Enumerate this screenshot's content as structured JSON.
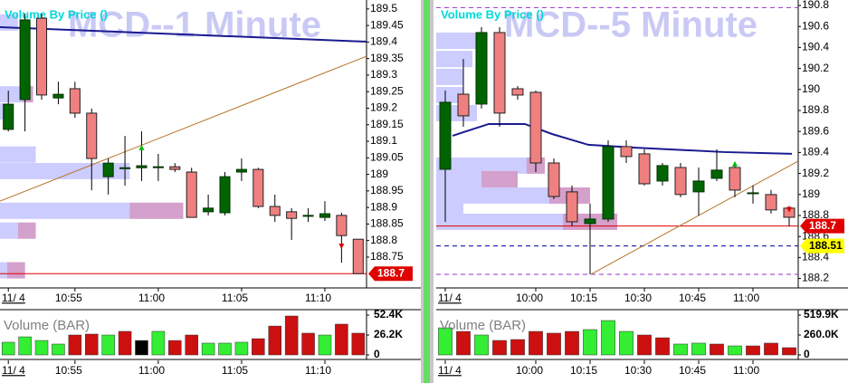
{
  "chart_data": [
    {
      "type": "candlestick",
      "title": "MCD--1 Minute",
      "subtitle": "Volume By Price ()",
      "categories": [
        "11/ 4",
        null,
        null,
        null,
        "10:55",
        null,
        null,
        null,
        null,
        "11:00",
        null,
        null,
        null,
        null,
        "11:05",
        null,
        null,
        null,
        null,
        "11:10",
        null,
        null
      ],
      "open": [
        189.136,
        189.226,
        189.472,
        189.231,
        189.259,
        189.185,
        188.993,
        189.02,
        189.02,
        189.023,
        189.023,
        189.007,
        188.887,
        188.884,
        189.007,
        189.015,
        188.903,
        188.887,
        188.876,
        188.87,
        188.876,
        188.804
      ],
      "high": [
        189.253,
        189.486,
        189.486,
        189.28,
        189.28,
        189.199,
        189.048,
        189.116,
        189.13,
        189.062,
        189.034,
        189.02,
        188.939,
        189.007,
        189.048,
        189.02,
        188.939,
        188.898,
        188.898,
        188.919,
        188.884,
        188.804
      ],
      "low": [
        189.13,
        189.13,
        189.226,
        189.212,
        189.171,
        188.952,
        188.939,
        188.966,
        188.98,
        188.98,
        189.007,
        188.87,
        188.876,
        188.876,
        188.98,
        188.898,
        188.856,
        188.802,
        188.856,
        188.859,
        188.733,
        188.7
      ],
      "close": [
        189.212,
        189.467,
        189.24,
        189.242,
        189.185,
        189.048,
        189.034,
        189.02,
        189.026,
        189.023,
        189.015,
        188.87,
        188.898,
        188.993,
        189.015,
        188.903,
        188.876,
        188.867,
        188.876,
        188.881,
        188.815,
        188.7
      ],
      "up_color": "#006400",
      "down_color": "#f08080",
      "ylim": [
        188.665,
        189.527
      ],
      "yticks": [
        189.5,
        189.45,
        189.4,
        189.35,
        189.3,
        189.25,
        189.2,
        189.15,
        189.1,
        189.05,
        189,
        188.95,
        188.9,
        188.85,
        188.8,
        188.75
      ],
      "levels": [
        {
          "value": 188.7,
          "label": "188.7",
          "color": "#e00000"
        }
      ],
      "overlays": [
        {
          "color": "#1a1a90",
          "points": [
            [
              -0.5,
              189.445
            ],
            [
              21.5,
              189.401
            ]
          ]
        },
        {
          "color": "#b8742a",
          "points": [
            [
              -0.5,
              188.919
            ],
            [
              21.5,
              189.357
            ]
          ]
        }
      ],
      "volume_by_price": {
        "prices": [
          189.459,
          189.242,
          189.19,
          189.06,
          189.01,
          188.89,
          188.83,
          188.71
        ],
        "up": [
          20,
          25,
          10,
          40,
          145,
          145,
          20,
          8
        ],
        "down": [
          0,
          12,
          0,
          0,
          0,
          60,
          20,
          20
        ],
        "up_color": "#ccccff",
        "down_color": "#d4a0cc"
      },
      "buy_signals": [
        8
      ],
      "sell_signals": [
        20
      ]
    },
    {
      "type": "bar",
      "title": "Volume (BAR)",
      "categories": [
        "11/ 4",
        null,
        null,
        null,
        "10:55",
        null,
        null,
        null,
        null,
        "11:00",
        null,
        null,
        null,
        null,
        "11:05",
        null,
        null,
        null,
        null,
        "11:10",
        null,
        null
      ],
      "values": [
        16700,
        23800,
        19000,
        14300,
        26200,
        27400,
        26200,
        31000,
        19000,
        31000,
        19000,
        26200,
        15500,
        15500,
        16700,
        21400,
        38000,
        51200,
        28600,
        26200,
        40500,
        28600
      ],
      "colors": [
        "#33ee33",
        "#33ee33",
        "#33ee33",
        "#33ee33",
        "#cc1010",
        "#cc1010",
        "#33ee33",
        "#cc1010",
        "#000000",
        "#33ee33",
        "#cc1010",
        "#cc1010",
        "#33ee33",
        "#33ee33",
        "#33ee33",
        "#cc1010",
        "#cc1010",
        "#cc1010",
        "#cc1010",
        "#33ee33",
        "#cc1010",
        "#cc1010"
      ],
      "ylim": [
        0,
        59545
      ],
      "yticks": [
        {
          "value": 52400,
          "label": "52.4K"
        },
        {
          "value": 26200,
          "label": "26.2K"
        },
        0
      ]
    },
    {
      "type": "candlestick",
      "title": "MCD--5 Minute",
      "subtitle": "Volume By Price ()",
      "categories": [
        "11/ 4",
        null,
        null,
        null,
        null,
        "10:00",
        null,
        null,
        "10:15",
        null,
        null,
        "10:30",
        null,
        null,
        "10:45",
        null,
        null,
        "11:00",
        null,
        null
      ],
      "open": [
        189.24,
        189.955,
        189.861,
        190.542,
        190.007,
        189.973,
        189.3,
        189.025,
        188.723,
        188.766,
        189.456,
        189.387,
        189.128,
        189.257,
        189.025,
        189.154,
        189.257,
        189.016,
        188.999,
        188.87
      ],
      "high": [
        189.99,
        190.29,
        190.593,
        190.593,
        190.033,
        189.99,
        189.343,
        189.085,
        188.913,
        189.516,
        189.516,
        189.43,
        189.3,
        189.3,
        189.257,
        189.43,
        189.275,
        189.085,
        189.042,
        188.89
      ],
      "low": [
        188.74,
        189.645,
        189.818,
        189.645,
        189.904,
        189.214,
        188.956,
        188.697,
        188.24,
        188.74,
        189.3,
        189.085,
        189.085,
        188.973,
        188.8,
        189.128,
        188.973,
        188.913,
        188.818,
        188.7
      ],
      "close": [
        189.878,
        189.749,
        190.542,
        189.775,
        189.947,
        189.3,
        188.981,
        188.74,
        188.766,
        189.456,
        189.361,
        189.102,
        189.275,
        189.0,
        189.128,
        189.232,
        189.042,
        189.016,
        188.853,
        188.783
      ],
      "up_color": "#006400",
      "down_color": "#f08080",
      "ylim": [
        188.136,
        190.852
      ],
      "yticks": [
        190.8,
        190.6,
        190.4,
        190.2,
        190,
        189.8,
        189.6,
        189.4,
        189.2,
        189,
        188.8,
        188.6,
        188.4,
        188.2
      ],
      "levels": [
        {
          "value": 190.78,
          "color": "#9932cc",
          "dashed": true
        },
        {
          "value": 188.7,
          "label": "188.7",
          "color": "#e00000"
        },
        {
          "value": 188.51,
          "label": "188.51",
          "color": "#0000a0",
          "dashed": true,
          "label_color": "#ffff00"
        },
        {
          "value": 188.24,
          "color": "#9932cc",
          "dashed": true
        }
      ],
      "overlays": [
        {
          "color": "#1a1a90",
          "points": [
            [
              0.4,
              189.559
            ],
            [
              2.4,
              189.671
            ],
            [
              4.4,
              189.671
            ],
            [
              5.9,
              189.576
            ],
            [
              7.9,
              189.473
            ],
            [
              10.4,
              189.447
            ],
            [
              15.4,
              189.404
            ],
            [
              19.15,
              189.387
            ]
          ]
        },
        {
          "color": "#b8742a",
          "points": [
            [
              8.05,
              188.24
            ],
            [
              19.5,
              189.318
            ]
          ]
        }
      ],
      "volume_by_price": {
        "prices": [
          190.464,
          190.29,
          190.12,
          189.947,
          189.775,
          189.275,
          189.145,
          188.99,
          188.87,
          188.74
        ],
        "up": [
          55,
          40,
          30,
          30,
          45,
          100,
          50,
          125,
          30,
          140
        ],
        "down": [
          0,
          0,
          0,
          0,
          0,
          20,
          40,
          45,
          0,
          60
        ],
        "up_color": "#ccccff",
        "down_color": "#d4a0cc"
      },
      "buy_signals": [
        16
      ],
      "sell_signals": [
        19
      ]
    },
    {
      "type": "bar",
      "title": "Volume (BAR)",
      "categories": [
        "11/ 4",
        null,
        null,
        null,
        null,
        "10:00",
        null,
        null,
        "10:15",
        null,
        null,
        "10:30",
        null,
        null,
        "10:45",
        null,
        null,
        "11:00",
        null,
        null
      ],
      "values": [
        354000,
        307000,
        260000,
        189000,
        201000,
        307000,
        284000,
        307000,
        331000,
        449000,
        307000,
        260000,
        224000,
        142000,
        154000,
        142000,
        118000,
        118000,
        154000,
        95000
      ],
      "colors": [
        "#33ee33",
        "#cc1010",
        "#33ee33",
        "#cc1010",
        "#cc1010",
        "#cc1010",
        "#cc1010",
        "#cc1010",
        "#33ee33",
        "#33ee33",
        "#33ee33",
        "#cc1010",
        "#cc1010",
        "#33ee33",
        "#33ee33",
        "#cc1010",
        "#33ee33",
        "#cc1010",
        "#cc1010",
        "#cc1010"
      ],
      "ylim": [
        0,
        590800
      ],
      "yticks": [
        {
          "value": 519900,
          "label": "519.9K"
        },
        {
          "value": 260000,
          "label": "260.0K"
        },
        0
      ]
    }
  ]
}
